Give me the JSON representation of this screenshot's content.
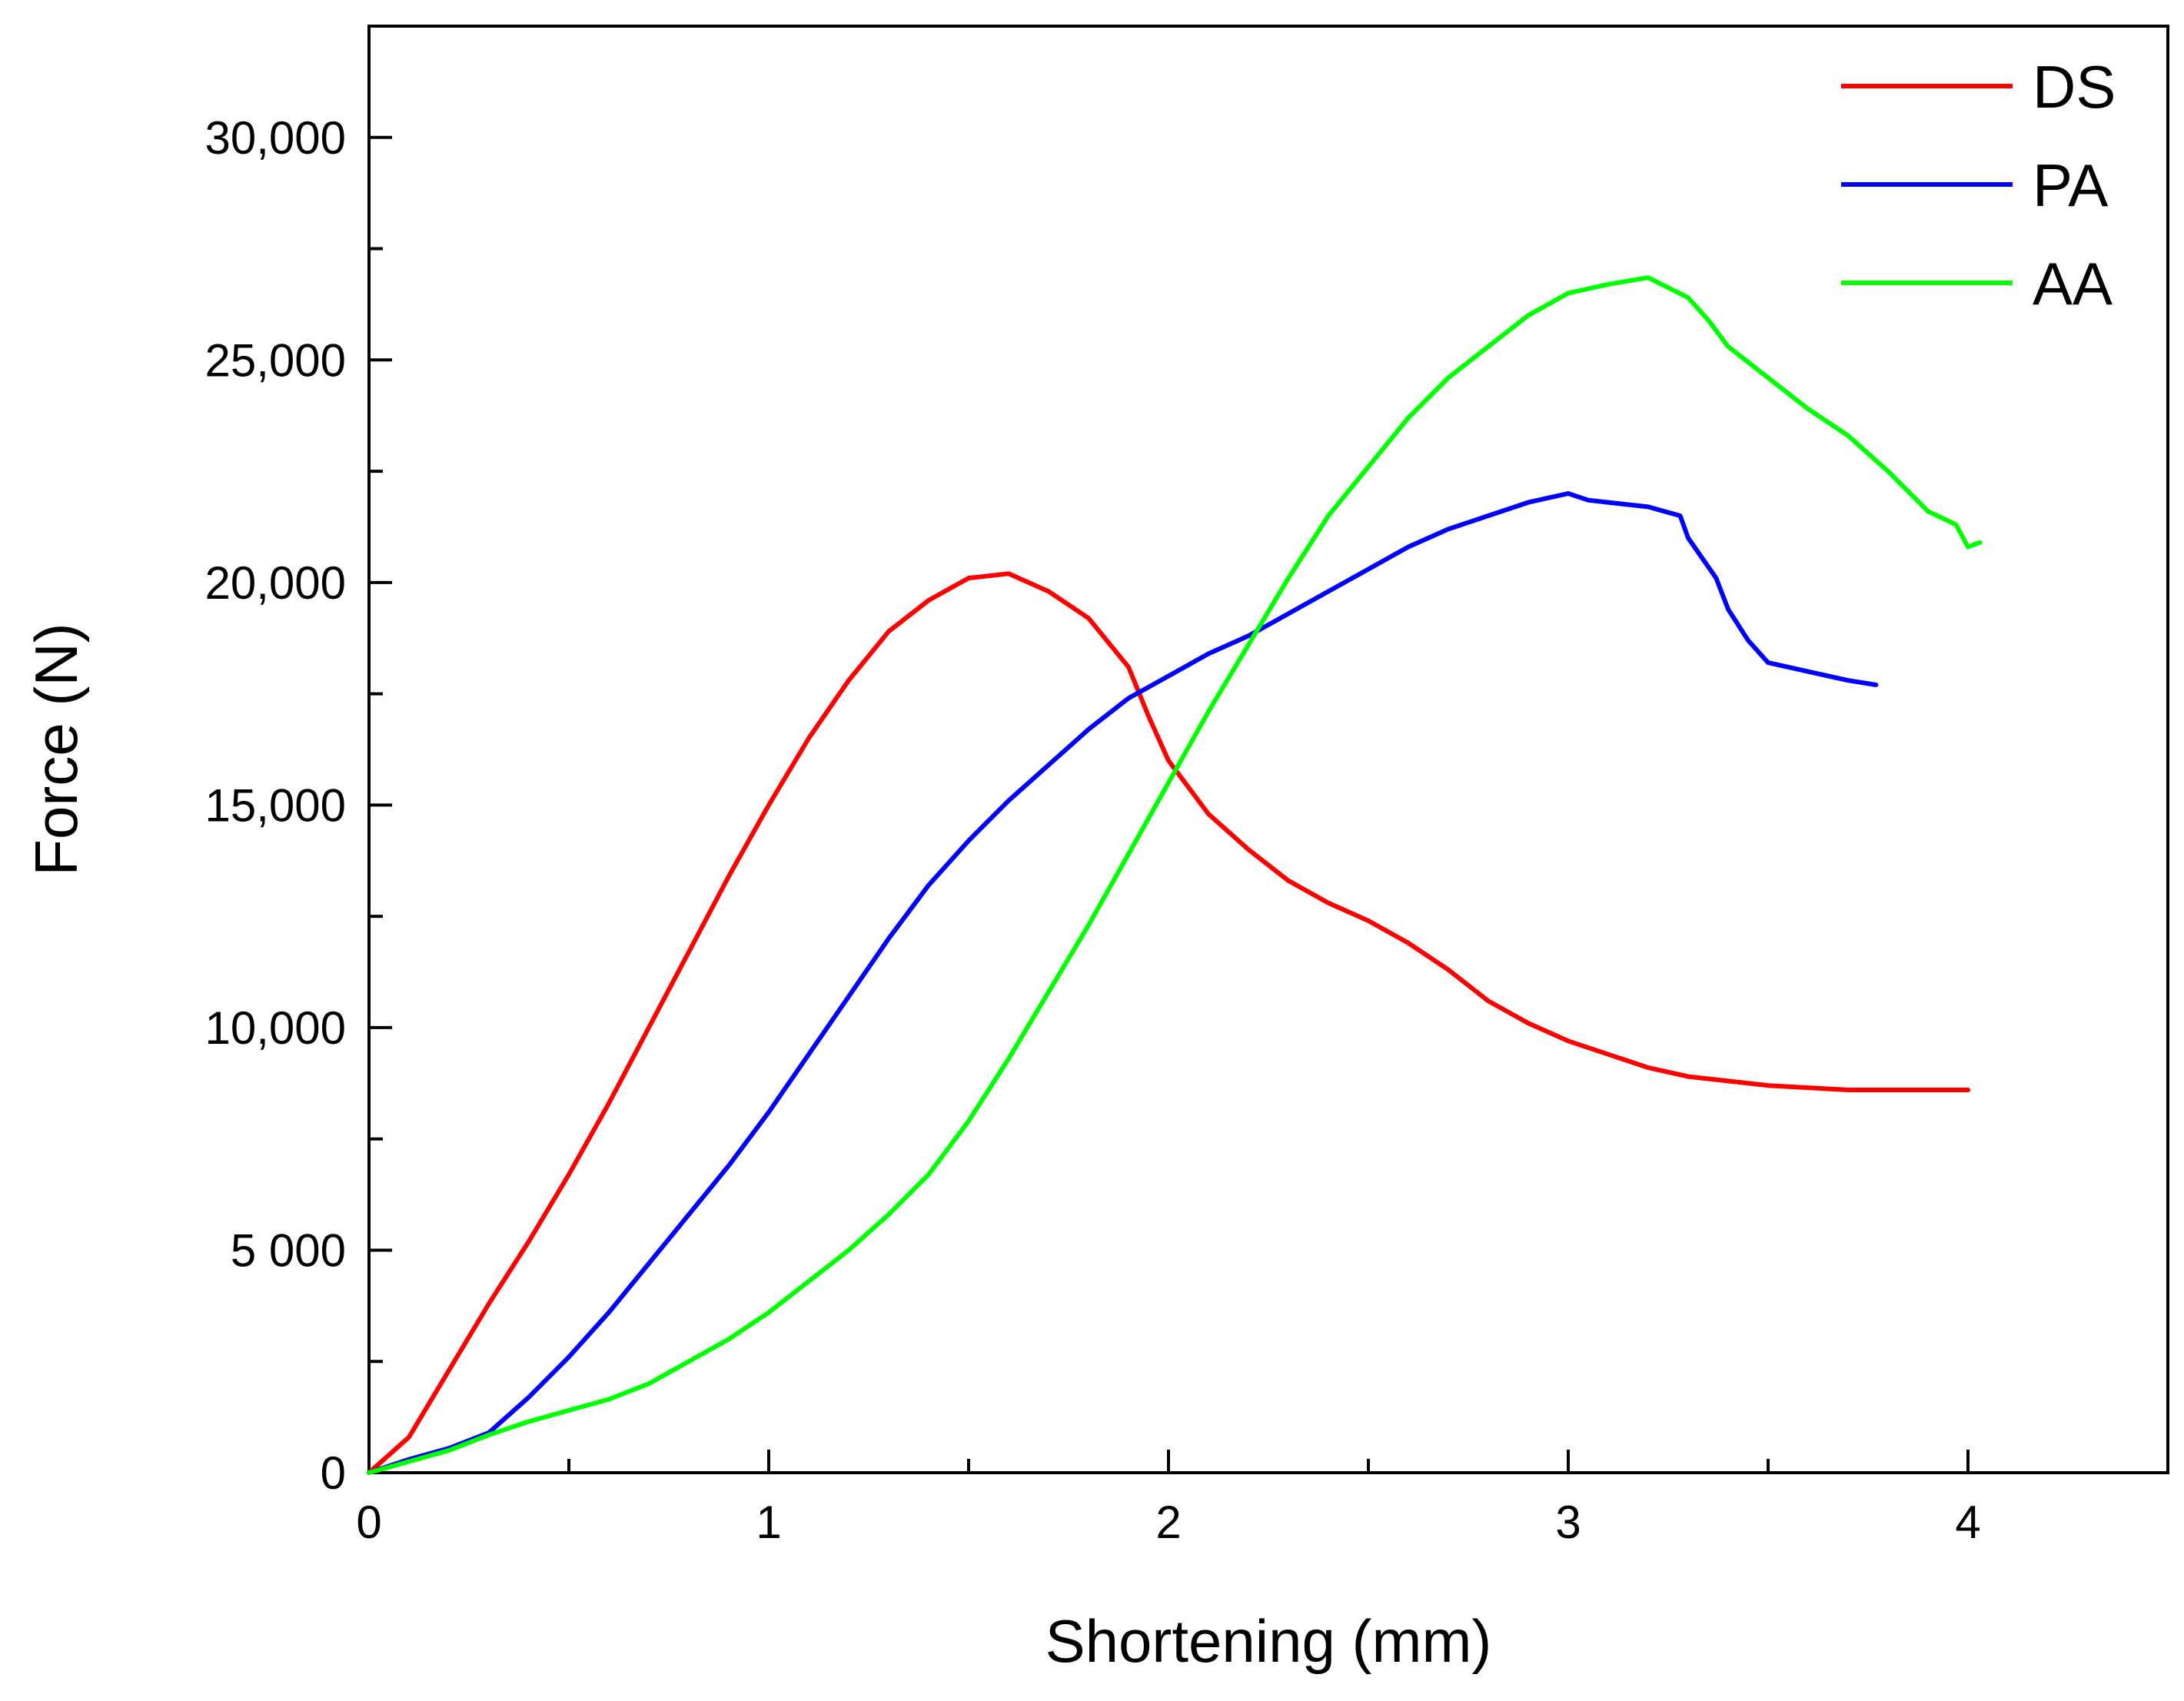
{
  "chart_data": {
    "type": "line",
    "title": "",
    "xlabel": "Shortening (mm)",
    "ylabel": "Force (N)",
    "xlim": [
      0,
      4.5
    ],
    "ylim": [
      0,
      32500
    ],
    "xticks": [
      {
        "value": 0,
        "label": "0"
      },
      {
        "value": 1,
        "label": "1"
      },
      {
        "value": 2,
        "label": "2"
      },
      {
        "value": 3,
        "label": "3"
      },
      {
        "value": 4,
        "label": "4"
      }
    ],
    "yticks": [
      {
        "value": 0,
        "label": "0"
      },
      {
        "value": 5000,
        "label": "5 000"
      },
      {
        "value": 10000,
        "label": "10,000"
      },
      {
        "value": 15000,
        "label": "15,000"
      },
      {
        "value": 20000,
        "label": "20,000"
      },
      {
        "value": 25000,
        "label": "25,000"
      },
      {
        "value": 30000,
        "label": "30,000"
      }
    ],
    "grid": false,
    "legend_position": "top-right",
    "series": [
      {
        "name": "DS",
        "color": "#ff0000",
        "points": [
          [
            0,
            0
          ],
          [
            0.1,
            800
          ],
          [
            0.2,
            2300
          ],
          [
            0.3,
            3800
          ],
          [
            0.4,
            5200
          ],
          [
            0.5,
            6700
          ],
          [
            0.6,
            8300
          ],
          [
            0.7,
            10000
          ],
          [
            0.8,
            11700
          ],
          [
            0.9,
            13400
          ],
          [
            1.0,
            15000
          ],
          [
            1.1,
            16500
          ],
          [
            1.2,
            17800
          ],
          [
            1.3,
            18900
          ],
          [
            1.4,
            19600
          ],
          [
            1.5,
            20100
          ],
          [
            1.6,
            20200
          ],
          [
            1.7,
            19800
          ],
          [
            1.8,
            19200
          ],
          [
            1.9,
            18100
          ],
          [
            1.95,
            17000
          ],
          [
            2.0,
            16000
          ],
          [
            2.1,
            14800
          ],
          [
            2.2,
            14000
          ],
          [
            2.3,
            13300
          ],
          [
            2.4,
            12800
          ],
          [
            2.5,
            12400
          ],
          [
            2.6,
            11900
          ],
          [
            2.7,
            11300
          ],
          [
            2.8,
            10600
          ],
          [
            2.9,
            10100
          ],
          [
            3.0,
            9700
          ],
          [
            3.1,
            9400
          ],
          [
            3.2,
            9100
          ],
          [
            3.3,
            8900
          ],
          [
            3.4,
            8800
          ],
          [
            3.5,
            8700
          ],
          [
            3.6,
            8650
          ],
          [
            3.7,
            8600
          ],
          [
            3.8,
            8600
          ],
          [
            3.9,
            8600
          ],
          [
            4.0,
            8600
          ]
        ]
      },
      {
        "name": "PA",
        "color": "#0000ff",
        "points": [
          [
            0,
            0
          ],
          [
            0.1,
            300
          ],
          [
            0.2,
            550
          ],
          [
            0.3,
            900
          ],
          [
            0.4,
            1700
          ],
          [
            0.5,
            2600
          ],
          [
            0.6,
            3600
          ],
          [
            0.7,
            4700
          ],
          [
            0.8,
            5800
          ],
          [
            0.9,
            6900
          ],
          [
            1.0,
            8100
          ],
          [
            1.1,
            9400
          ],
          [
            1.2,
            10700
          ],
          [
            1.3,
            12000
          ],
          [
            1.4,
            13200
          ],
          [
            1.5,
            14200
          ],
          [
            1.6,
            15100
          ],
          [
            1.7,
            15900
          ],
          [
            1.8,
            16700
          ],
          [
            1.9,
            17400
          ],
          [
            2.0,
            17900
          ],
          [
            2.1,
            18400
          ],
          [
            2.2,
            18800
          ],
          [
            2.3,
            19300
          ],
          [
            2.4,
            19800
          ],
          [
            2.5,
            20300
          ],
          [
            2.6,
            20800
          ],
          [
            2.7,
            21200
          ],
          [
            2.8,
            21500
          ],
          [
            2.9,
            21800
          ],
          [
            3.0,
            22000
          ],
          [
            3.05,
            21850
          ],
          [
            3.1,
            21800
          ],
          [
            3.2,
            21700
          ],
          [
            3.28,
            21500
          ],
          [
            3.3,
            21000
          ],
          [
            3.37,
            20100
          ],
          [
            3.4,
            19400
          ],
          [
            3.45,
            18700
          ],
          [
            3.5,
            18200
          ],
          [
            3.6,
            18000
          ],
          [
            3.7,
            17800
          ],
          [
            3.77,
            17700
          ]
        ]
      },
      {
        "name": "AA",
        "color": "#00ff00",
        "points": [
          [
            0,
            0
          ],
          [
            0.1,
            250
          ],
          [
            0.2,
            500
          ],
          [
            0.3,
            850
          ],
          [
            0.4,
            1150
          ],
          [
            0.5,
            1400
          ],
          [
            0.6,
            1650
          ],
          [
            0.7,
            2000
          ],
          [
            0.8,
            2500
          ],
          [
            0.9,
            3000
          ],
          [
            1.0,
            3600
          ],
          [
            1.1,
            4300
          ],
          [
            1.2,
            5000
          ],
          [
            1.3,
            5800
          ],
          [
            1.4,
            6700
          ],
          [
            1.5,
            7900
          ],
          [
            1.6,
            9300
          ],
          [
            1.7,
            10800
          ],
          [
            1.8,
            12300
          ],
          [
            1.9,
            13900
          ],
          [
            2.0,
            15500
          ],
          [
            2.1,
            17100
          ],
          [
            2.2,
            18600
          ],
          [
            2.3,
            20100
          ],
          [
            2.4,
            21500
          ],
          [
            2.5,
            22600
          ],
          [
            2.6,
            23700
          ],
          [
            2.7,
            24600
          ],
          [
            2.8,
            25300
          ],
          [
            2.9,
            26000
          ],
          [
            3.0,
            26500
          ],
          [
            3.1,
            26700
          ],
          [
            3.2,
            26850
          ],
          [
            3.3,
            26400
          ],
          [
            3.35,
            25900
          ],
          [
            3.4,
            25300
          ],
          [
            3.5,
            24600
          ],
          [
            3.6,
            23900
          ],
          [
            3.7,
            23300
          ],
          [
            3.8,
            22500
          ],
          [
            3.9,
            21600
          ],
          [
            3.97,
            21300
          ],
          [
            4.0,
            20800
          ],
          [
            4.03,
            20900
          ]
        ]
      }
    ]
  }
}
